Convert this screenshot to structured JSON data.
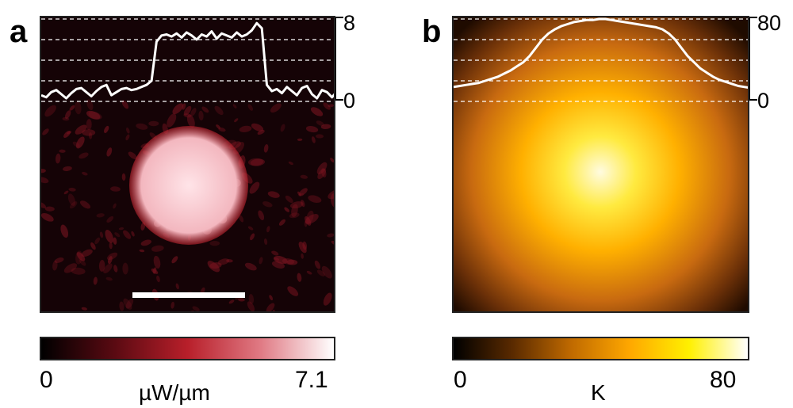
{
  "panels": [
    {
      "letter": "a",
      "axis_ticks": [
        "8",
        "0"
      ],
      "colorbar": {
        "min": "0",
        "max": "7.1",
        "unit": "µW/µm",
        "colors": [
          "#000000",
          "#5a0a12",
          "#b81f2a",
          "#e07a84",
          "#ffffff"
        ]
      },
      "profile": [
        0.6,
        0.4,
        0.9,
        1.1,
        0.7,
        0.3,
        0.8,
        1.2,
        1.3,
        0.9,
        0.5,
        1.0,
        1.4,
        1.6,
        0.6,
        0.9,
        1.2,
        1.3,
        1.1,
        1.2,
        1.4,
        1.6,
        2.0,
        5.8,
        6.4,
        6.5,
        6.3,
        6.6,
        6.2,
        6.7,
        6.4,
        6.0,
        6.5,
        6.3,
        6.8,
        6.1,
        6.6,
        6.4,
        6.2,
        6.7,
        6.3,
        6.5,
        6.9,
        7.6,
        7.1,
        1.6,
        1.0,
        1.2,
        0.8,
        1.4,
        1.0,
        0.6,
        1.3,
        1.5,
        0.7,
        0.3,
        1.1,
        0.9,
        0.4,
        1.0
      ],
      "profile_max": 8,
      "gridlines": [
        2,
        4,
        6,
        8
      ],
      "has_scalebar": true
    },
    {
      "letter": "b",
      "axis_ticks": [
        "80",
        "0"
      ],
      "colorbar": {
        "min": "0",
        "max": "80",
        "unit": "K",
        "colors": [
          "#000000",
          "#5a2a00",
          "#c06a00",
          "#ffa800",
          "#fff000",
          "#ffffff"
        ]
      },
      "profile": [
        14,
        15,
        16,
        17,
        18,
        20,
        22,
        24,
        27,
        30,
        34,
        38,
        44,
        52,
        60,
        66,
        70,
        73,
        75,
        77,
        78,
        79,
        79,
        80,
        80,
        79,
        78,
        77,
        76,
        75,
        74,
        73,
        72,
        70,
        66,
        60,
        52,
        44,
        38,
        32,
        28,
        24,
        21,
        19,
        17,
        15,
        14,
        13
      ],
      "profile_max": 80,
      "gridlines": [
        20,
        40,
        60,
        80
      ],
      "has_scalebar": false
    }
  ]
}
